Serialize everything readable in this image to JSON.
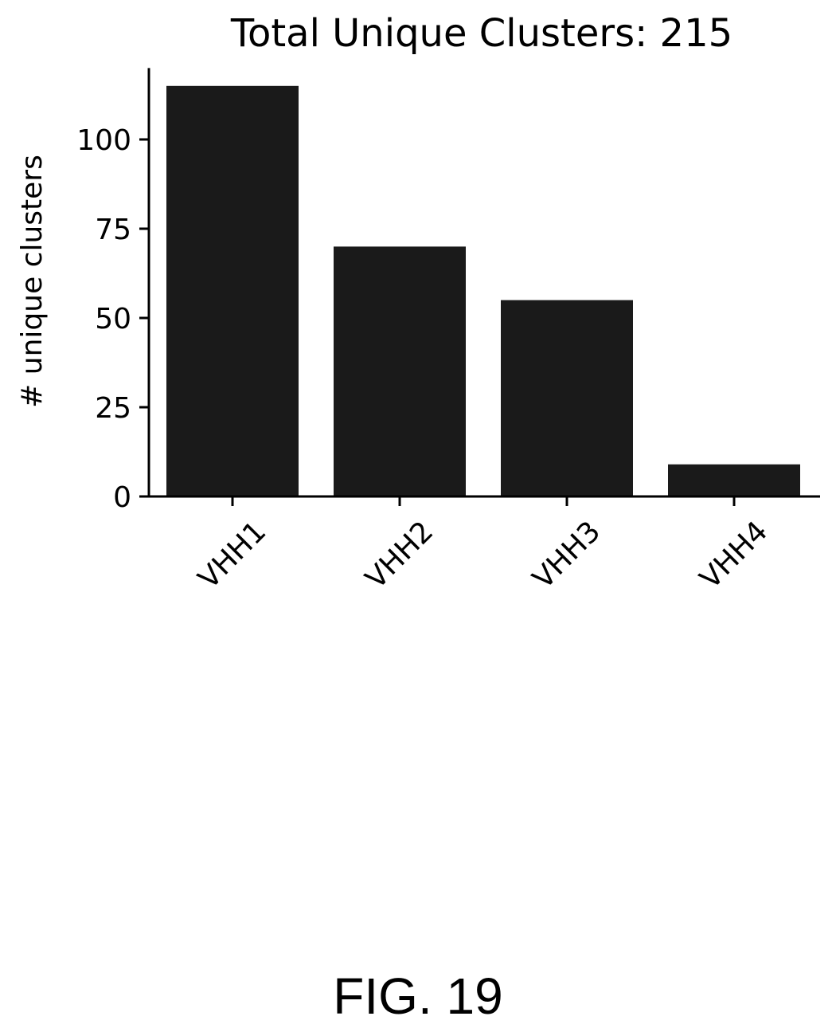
{
  "chart_data": {
    "type": "bar",
    "title": "Total Unique Clusters: 215",
    "categories": [
      "VHH1",
      "VHH2",
      "VHH3",
      "VHH4"
    ],
    "values": [
      115,
      70,
      55,
      9
    ],
    "xlabel": "",
    "ylabel": "# unique clusters",
    "ylim": [
      0,
      120
    ],
    "yticks": [
      0,
      25,
      50,
      75,
      100
    ],
    "grid": false,
    "legend": "none",
    "bar_color": "#1a1a1a",
    "axis_color": "#000000"
  },
  "caption": "FIG.  19"
}
